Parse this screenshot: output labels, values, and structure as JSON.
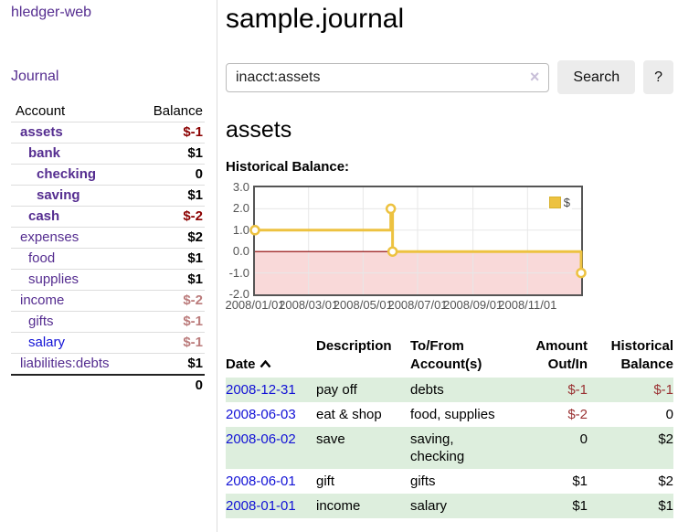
{
  "app": {
    "brand": "hledger-web"
  },
  "nav": {
    "journal": "Journal"
  },
  "sidebar": {
    "headers": {
      "account": "Account",
      "balance": "Balance"
    },
    "accounts": [
      {
        "name": "assets",
        "balance": "$-1",
        "depth": 1,
        "bold": true,
        "balance_style": "negative"
      },
      {
        "name": "bank",
        "balance": "$1",
        "depth": 2,
        "bold": true,
        "balance_style": "normal"
      },
      {
        "name": "checking",
        "balance": "0",
        "depth": 3,
        "bold": true,
        "balance_style": "normal"
      },
      {
        "name": "saving",
        "balance": "$1",
        "depth": 3,
        "bold": true,
        "balance_style": "normal"
      },
      {
        "name": "cash",
        "balance": "$-2",
        "depth": 2,
        "bold": true,
        "balance_style": "negative"
      },
      {
        "name": "expenses",
        "balance": "$2",
        "depth": 1,
        "bold": false,
        "balance_style": "normal"
      },
      {
        "name": "food",
        "balance": "$1",
        "depth": 2,
        "bold": false,
        "balance_style": "normal"
      },
      {
        "name": "supplies",
        "balance": "$1",
        "depth": 2,
        "bold": false,
        "balance_style": "normal"
      },
      {
        "name": "income",
        "balance": "$-2",
        "depth": 1,
        "bold": false,
        "balance_style": "negative-soft"
      },
      {
        "name": "gifts",
        "balance": "$-1",
        "depth": 2,
        "bold": false,
        "balance_style": "negative-soft"
      },
      {
        "name": "salary",
        "balance": "$-1",
        "depth": 2,
        "bold": false,
        "balance_style": "negative-soft",
        "link_style": "unvisited"
      },
      {
        "name": "liabilities:debts",
        "balance": "$1",
        "depth": 1,
        "bold": false,
        "balance_style": "normal"
      }
    ],
    "total": "0"
  },
  "header": {
    "title": "sample.journal"
  },
  "search": {
    "value": "inacct:assets",
    "clear_icon": "×",
    "search_button": "Search",
    "help_button": "?"
  },
  "account_page": {
    "title": "assets",
    "section_label": "Historical Balance:"
  },
  "chart_data": {
    "type": "line",
    "step": true,
    "title": "Historical Balance",
    "series": [
      {
        "name": "$",
        "color": "#edc240",
        "points": [
          [
            "2008-01-01",
            1
          ],
          [
            "2008-06-01",
            2
          ],
          [
            "2008-06-03",
            0
          ],
          [
            "2008-12-31",
            -1
          ]
        ]
      }
    ],
    "x_range": [
      "2008-01-01",
      "2008-12-31"
    ],
    "y_range": [
      -2,
      3
    ],
    "y_ticks": [
      3,
      2,
      1,
      0,
      -1,
      -2
    ],
    "x_ticks": [
      "2008/01/01",
      "2008/03/01",
      "2008/05/01",
      "2008/07/01",
      "2008/09/01",
      "2008/11/01"
    ],
    "legend": {
      "label": "$",
      "position": "top-right"
    },
    "grid": true,
    "colors": {
      "series": "#edc240",
      "negative_region": "#f9d9d9",
      "zero_line": "#8b0000",
      "grid": "#e7e7e7",
      "border": "#555555"
    }
  },
  "register": {
    "headers": [
      {
        "line1": "Date",
        "sorted": "asc"
      },
      {
        "line1": "Description"
      },
      {
        "line1": "To/From",
        "line2": "Account(s)"
      },
      {
        "line1": "Amount",
        "line2": "Out/In"
      },
      {
        "line1": "Historical",
        "line2": "Balance"
      }
    ],
    "rows": [
      {
        "date": "2008-12-31",
        "description": "pay off",
        "accounts": "debts",
        "amount": "$-1",
        "amount_negative": true,
        "balance": "$-1",
        "balance_negative": true
      },
      {
        "date": "2008-06-03",
        "description": "eat & shop",
        "accounts": "food, supplies",
        "amount": "$-2",
        "amount_negative": true,
        "balance": "0",
        "balance_negative": false
      },
      {
        "date": "2008-06-02",
        "description": "save",
        "accounts": "saving, checking",
        "amount": "0",
        "amount_negative": false,
        "balance": "$2",
        "balance_negative": false
      },
      {
        "date": "2008-06-01",
        "description": "gift",
        "accounts": "gifts",
        "amount": "$1",
        "amount_negative": false,
        "balance": "$2",
        "balance_negative": false
      },
      {
        "date": "2008-01-01",
        "description": "income",
        "accounts": "salary",
        "amount": "$1",
        "amount_negative": false,
        "balance": "$1",
        "balance_negative": false
      }
    ]
  }
}
